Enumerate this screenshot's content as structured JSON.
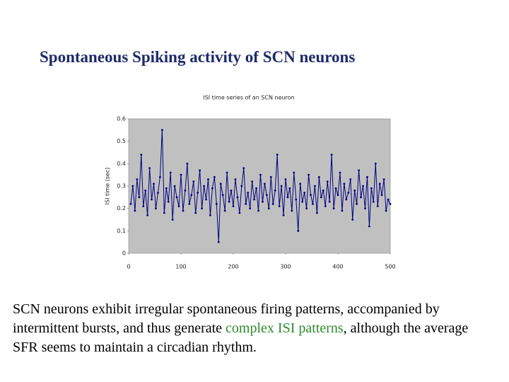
{
  "slide_title": "Spontaneous Spiking activity of SCN neurons",
  "body": [
    "SCN neurons exhibit irregular spontaneous firing patterns, accompanied  by intermittent bursts, and thus generate ",
    "complex ISI patterns",
    ", although the average SFR seems to maintain a circadian rhythm."
  ],
  "chart_data": {
    "type": "line",
    "title": "ISI time series of an SCN neuron",
    "y_label": "ISI time (sec)",
    "color": "#000080",
    "xlim": [
      0,
      500
    ],
    "xticks": [
      0,
      100,
      200,
      300,
      400,
      500
    ],
    "ylim": [
      0,
      0.6
    ],
    "yticks": [
      0,
      0.1,
      0.2,
      0.3,
      0.4,
      0.5,
      0.6
    ],
    "x": [
      4,
      8,
      12,
      16,
      20,
      24,
      28,
      32,
      36,
      40,
      44,
      48,
      52,
      56,
      60,
      64,
      68,
      72,
      76,
      80,
      84,
      88,
      92,
      96,
      100,
      104,
      108,
      112,
      116,
      120,
      124,
      128,
      132,
      136,
      140,
      144,
      148,
      152,
      156,
      160,
      164,
      168,
      172,
      176,
      180,
      184,
      188,
      192,
      196,
      200,
      204,
      208,
      212,
      216,
      220,
      224,
      228,
      232,
      236,
      240,
      244,
      248,
      252,
      256,
      260,
      264,
      268,
      272,
      276,
      280,
      284,
      288,
      292,
      296,
      300,
      304,
      308,
      312,
      316,
      320,
      324,
      328,
      332,
      336,
      340,
      344,
      348,
      352,
      356,
      360,
      364,
      368,
      372,
      376,
      380,
      384,
      388,
      392,
      396,
      400,
      404,
      408,
      412,
      416,
      420,
      424,
      428,
      432,
      436,
      440,
      444,
      448,
      452,
      456,
      460,
      464,
      468,
      472,
      476,
      480,
      484,
      488,
      492,
      496,
      500
    ],
    "values": [
      0.22,
      0.3,
      0.19,
      0.33,
      0.25,
      0.44,
      0.21,
      0.28,
      0.17,
      0.38,
      0.24,
      0.31,
      0.2,
      0.27,
      0.34,
      0.55,
      0.18,
      0.29,
      0.23,
      0.36,
      0.15,
      0.3,
      0.25,
      0.21,
      0.35,
      0.19,
      0.28,
      0.4,
      0.22,
      0.26,
      0.32,
      0.18,
      0.27,
      0.37,
      0.2,
      0.3,
      0.24,
      0.33,
      0.17,
      0.29,
      0.34,
      0.22,
      0.05,
      0.31,
      0.26,
      0.19,
      0.36,
      0.23,
      0.28,
      0.21,
      0.33,
      0.25,
      0.18,
      0.3,
      0.38,
      0.22,
      0.27,
      0.2,
      0.32,
      0.24,
      0.29,
      0.19,
      0.35,
      0.23,
      0.31,
      0.26,
      0.2,
      0.34,
      0.22,
      0.28,
      0.44,
      0.21,
      0.3,
      0.17,
      0.33,
      0.25,
      0.29,
      0.19,
      0.36,
      0.24,
      0.1,
      0.31,
      0.23,
      0.27,
      0.2,
      0.35,
      0.26,
      0.22,
      0.3,
      0.18,
      0.34,
      0.25,
      0.28,
      0.21,
      0.32,
      0.23,
      0.44,
      0.2,
      0.29,
      0.26,
      0.36,
      0.19,
      0.31,
      0.24,
      0.27,
      0.33,
      0.15,
      0.28,
      0.22,
      0.37,
      0.25,
      0.3,
      0.2,
      0.34,
      0.12,
      0.29,
      0.23,
      0.4,
      0.21,
      0.31,
      0.26,
      0.33,
      0.19,
      0.24,
      0.22
    ]
  }
}
